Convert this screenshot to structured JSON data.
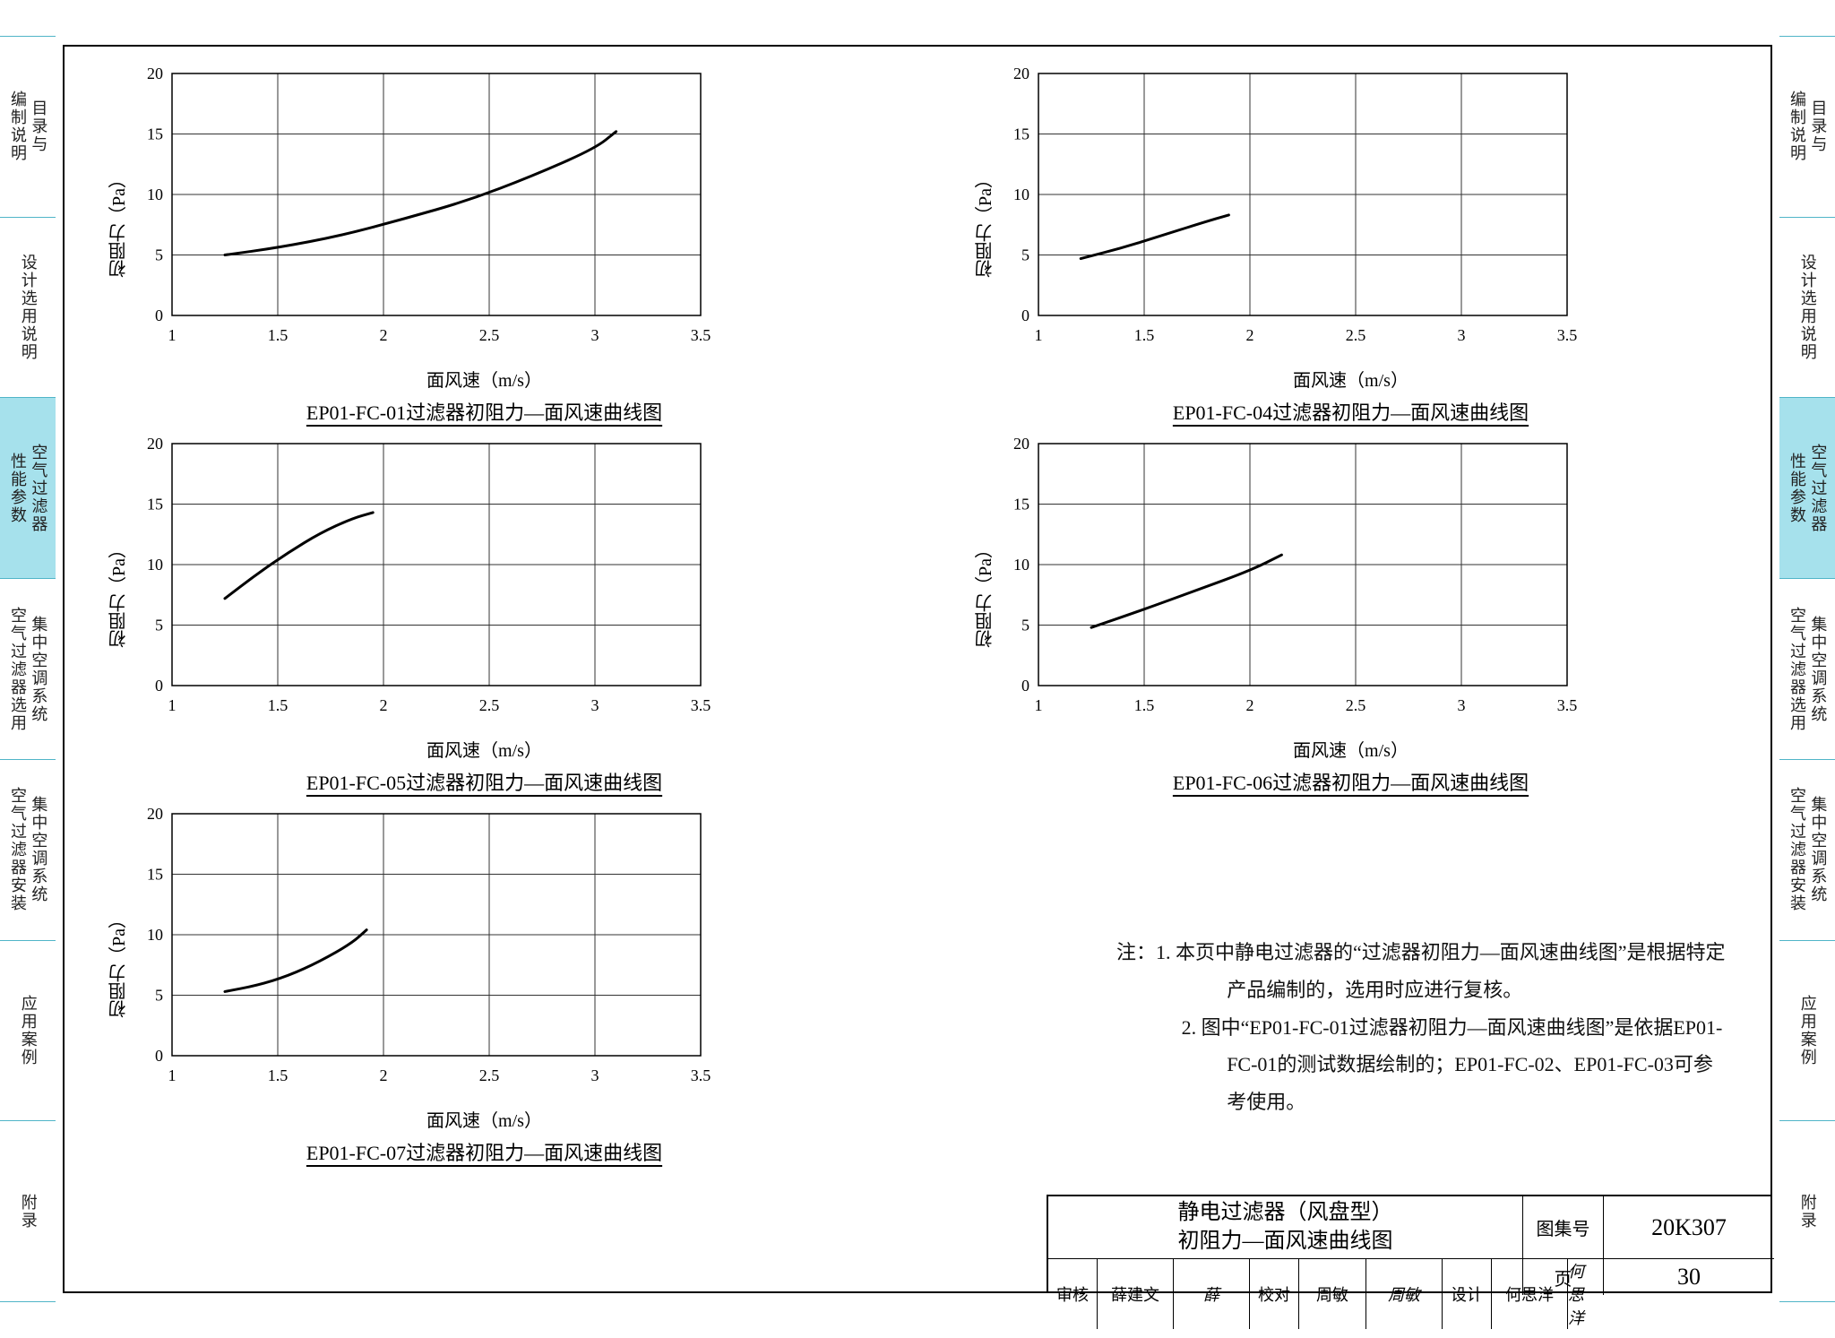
{
  "page": {
    "background_color": "#ffffff",
    "border_color": "#000000",
    "tab_border_color": "#50b5c8",
    "active_tab_bg": "#a6e1ec"
  },
  "side_tabs": [
    {
      "label": "目录与\n编制说明",
      "active": false
    },
    {
      "label": "设计选用说明",
      "active": false
    },
    {
      "label": "空气过滤器\n性能参数",
      "active": true
    },
    {
      "label": "集中空调系统\n空气过滤器选用",
      "active": false
    },
    {
      "label": "集中空调系统\n空气过滤器安装",
      "active": false
    },
    {
      "label": "应用案例",
      "active": false
    },
    {
      "label": "附录",
      "active": false
    }
  ],
  "axis_defaults": {
    "x_label": "面风速（m/s）",
    "y_label": "初阻力（Pa）",
    "x_min": 1,
    "x_max": 3.5,
    "x_step": 0.5,
    "y_min": 0,
    "y_max": 20,
    "y_step": 5,
    "grid_color": "#333333",
    "axis_color": "#000000",
    "curve_color": "#000000",
    "curve_width": 3,
    "tick_fontsize": 18
  },
  "charts": [
    {
      "id": "c01",
      "title": "EP01-FC-01过滤器初阻力—面风速曲线图",
      "points": [
        [
          1.25,
          5.0
        ],
        [
          1.5,
          5.6
        ],
        [
          1.8,
          6.6
        ],
        [
          2.1,
          8.0
        ],
        [
          2.4,
          9.5
        ],
        [
          2.7,
          11.5
        ],
        [
          3.0,
          13.8
        ],
        [
          3.1,
          15.2
        ]
      ]
    },
    {
      "id": "c04",
      "title": "EP01-FC-04过滤器初阻力—面风速曲线图",
      "points": [
        [
          1.2,
          4.7
        ],
        [
          1.4,
          5.6
        ],
        [
          1.6,
          6.7
        ],
        [
          1.8,
          7.8
        ],
        [
          1.9,
          8.3
        ]
      ]
    },
    {
      "id": "c05",
      "title": "EP01-FC-05过滤器初阻力—面风速曲线图",
      "points": [
        [
          1.25,
          7.2
        ],
        [
          1.4,
          9.2
        ],
        [
          1.55,
          11.0
        ],
        [
          1.7,
          12.6
        ],
        [
          1.85,
          13.8
        ],
        [
          1.95,
          14.3
        ]
      ]
    },
    {
      "id": "c06",
      "title": "EP01-FC-06过滤器初阻力—面风速曲线图",
      "points": [
        [
          1.25,
          4.8
        ],
        [
          1.5,
          6.3
        ],
        [
          1.75,
          7.9
        ],
        [
          2.0,
          9.5
        ],
        [
          2.15,
          10.8
        ]
      ]
    },
    {
      "id": "c07",
      "title": "EP01-FC-07过滤器初阻力—面风速曲线图",
      "points": [
        [
          1.25,
          5.3
        ],
        [
          1.4,
          5.8
        ],
        [
          1.55,
          6.6
        ],
        [
          1.7,
          7.8
        ],
        [
          1.85,
          9.3
        ],
        [
          1.92,
          10.4
        ]
      ]
    }
  ],
  "notes": {
    "prefix": "注：",
    "items": [
      "1. 本页中静电过滤器的“过滤器初阻力—面风速曲线图”是根据特定产品编制的，选用时应进行复核。",
      "2. 图中“EP01-FC-01过滤器初阻力—面风速曲线图”是依据EP01-FC-01的测试数据绘制的；EP01-FC-02、EP01-FC-03可参考使用。"
    ]
  },
  "title_block": {
    "title_line1": "静电过滤器（风盘型）",
    "title_line2": "初阻力—面风速曲线图",
    "catalog_label": "图集号",
    "catalog_value": "20K307",
    "page_label": "页",
    "page_value": "30",
    "review_label": "审核",
    "review_name": "薛建文",
    "check_label": "校对",
    "check_name": "周敏",
    "design_label": "设计",
    "design_name": "何思洋"
  }
}
